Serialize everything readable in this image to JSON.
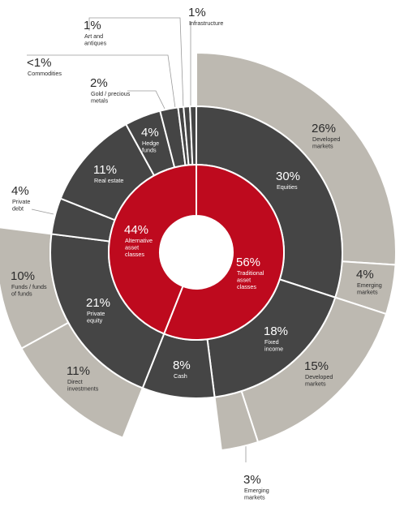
{
  "chart_data": {
    "type": "sunburst",
    "colors": {
      "traditional": "#be0a1e",
      "alternative": "#be0a1e",
      "middle_ring": "#454545",
      "outer_ring": "#bdb9b1",
      "separator": "#ffffff",
      "leader_line": "#9a9a9a",
      "label_dark_text": "#2b2b2b",
      "label_light_text": "#ffffff"
    },
    "inner": [
      {
        "id": "traditional",
        "pct_label": "56%",
        "lines": [
          "Traditional",
          "asset",
          "classes"
        ],
        "value": 56
      },
      {
        "id": "alternative",
        "pct_label": "44%",
        "lines": [
          "Alternative",
          "asset",
          "classes"
        ],
        "value": 44
      }
    ],
    "middle": [
      {
        "id": "equities",
        "parent": "traditional",
        "pct_label": "30%",
        "lines": [
          "Equities"
        ],
        "value": 30
      },
      {
        "id": "fixed-income",
        "parent": "traditional",
        "pct_label": "18%",
        "lines": [
          "Fixed",
          "income"
        ],
        "value": 18
      },
      {
        "id": "cash",
        "parent": "traditional",
        "pct_label": "8%",
        "lines": [
          "Cash"
        ],
        "value": 8
      },
      {
        "id": "private-equity",
        "parent": "alternative",
        "pct_label": "21%",
        "lines": [
          "Private",
          "equity"
        ],
        "value": 21
      },
      {
        "id": "private-debt",
        "parent": "alternative",
        "pct_label": "4%",
        "lines": [
          "Private",
          "debt"
        ],
        "value": 4
      },
      {
        "id": "real-estate",
        "parent": "alternative",
        "pct_label": "11%",
        "lines": [
          "Real estate"
        ],
        "value": 11
      },
      {
        "id": "hedge-funds",
        "parent": "alternative",
        "pct_label": "4%",
        "lines": [
          "Hedge",
          "funds"
        ],
        "value": 4
      },
      {
        "id": "gold-precious-metals",
        "parent": "alternative",
        "pct_label": "2%",
        "lines": [
          "Gold / precious",
          "metals"
        ],
        "value": 2
      },
      {
        "id": "commodities",
        "parent": "alternative",
        "pct_label": "<1%",
        "lines": [
          "Commodities"
        ],
        "value": 0.6
      },
      {
        "id": "art-antiques",
        "parent": "alternative",
        "pct_label": "1%",
        "lines": [
          "Art and",
          "antiques"
        ],
        "value": 0.7
      },
      {
        "id": "infrastructure",
        "parent": "alternative",
        "pct_label": "1%",
        "lines": [
          "Infrastructure"
        ],
        "value": 0.7
      }
    ],
    "outer": [
      {
        "id": "equities-developed",
        "parent": "equities",
        "pct_label": "26%",
        "lines": [
          "Developed",
          "markets"
        ],
        "value": 26
      },
      {
        "id": "equities-emerging",
        "parent": "equities",
        "pct_label": "4%",
        "lines": [
          "Emerging",
          "markets"
        ],
        "value": 4
      },
      {
        "id": "fixed-income-developed",
        "parent": "fixed-income",
        "pct_label": "15%",
        "lines": [
          "Developed",
          "markets"
        ],
        "value": 15
      },
      {
        "id": "fixed-income-emerging",
        "parent": "fixed-income",
        "pct_label": "3%",
        "lines": [
          "Emerging",
          "markets"
        ],
        "value": 3
      },
      {
        "id": "pe-direct",
        "parent": "private-equity",
        "pct_label": "11%",
        "lines": [
          "Direct",
          "investments"
        ],
        "value": 11
      },
      {
        "id": "pe-funds",
        "parent": "private-equity",
        "pct_label": "10%",
        "lines": [
          "Funds / funds",
          "of funds"
        ],
        "value": 10
      }
    ]
  }
}
